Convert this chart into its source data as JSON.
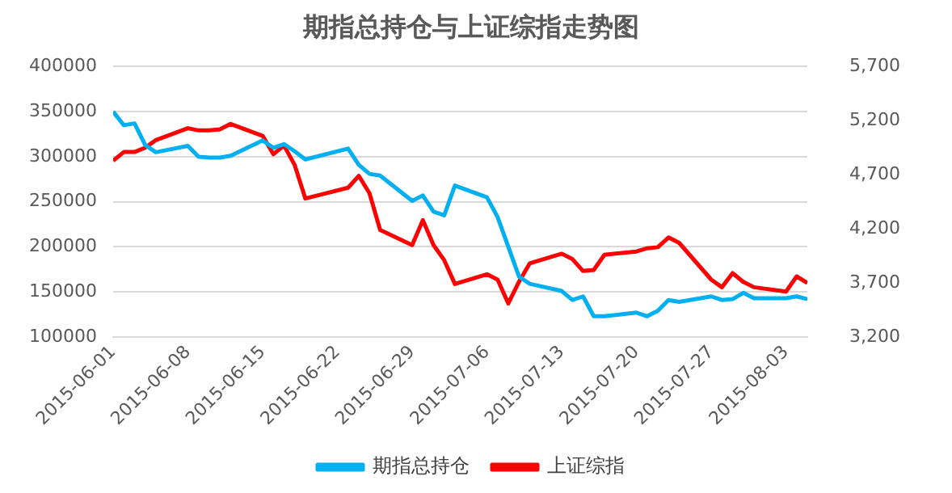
{
  "chart_data": {
    "type": "line",
    "title": "期指总持仓与上证综指走势图",
    "x": [
      "2015-06-01",
      "2015-06-02",
      "2015-06-03",
      "2015-06-04",
      "2015-06-05",
      "2015-06-08",
      "2015-06-09",
      "2015-06-10",
      "2015-06-11",
      "2015-06-12",
      "2015-06-15",
      "2015-06-16",
      "2015-06-17",
      "2015-06-18",
      "2015-06-19",
      "2015-06-23",
      "2015-06-24",
      "2015-06-25",
      "2015-06-26",
      "2015-06-29",
      "2015-06-30",
      "2015-07-01",
      "2015-07-02",
      "2015-07-03",
      "2015-07-06",
      "2015-07-07",
      "2015-07-08",
      "2015-07-09",
      "2015-07-10",
      "2015-07-13",
      "2015-07-14",
      "2015-07-15",
      "2015-07-16",
      "2015-07-17",
      "2015-07-20",
      "2015-07-21",
      "2015-07-22",
      "2015-07-23",
      "2015-07-24",
      "2015-07-27",
      "2015-07-28",
      "2015-07-29",
      "2015-07-30",
      "2015-07-31",
      "2015-08-03",
      "2015-08-04",
      "2015-08-05"
    ],
    "series": [
      {
        "name": "期指总持仓",
        "color": "#00b0f0",
        "values": [
          350000,
          335000,
          337000,
          313000,
          305000,
          312000,
          300000,
          299000,
          299000,
          301000,
          318000,
          310000,
          314000,
          306000,
          297000,
          309000,
          291000,
          281000,
          279000,
          251000,
          257000,
          239000,
          235000,
          268000,
          255000,
          233000,
          200000,
          167000,
          159000,
          151000,
          141000,
          145000,
          123000,
          123000,
          127000,
          123000,
          129000,
          141000,
          139000,
          145000,
          141000,
          142000,
          149000,
          143000,
          143000,
          145000,
          142000
        ]
      },
      {
        "name": "上证综指",
        "color": "#ff0000",
        "axis": "y2",
        "values": [
          4830,
          4910,
          4910,
          4950,
          5020,
          5130,
          5110,
          5110,
          5120,
          5170,
          5060,
          4890,
          4970,
          4790,
          4480,
          4580,
          4690,
          4530,
          4190,
          4050,
          4280,
          4050,
          3910,
          3690,
          3780,
          3730,
          3510,
          3710,
          3880,
          3970,
          3920,
          3810,
          3820,
          3960,
          3990,
          4020,
          4030,
          4120,
          4070,
          3730,
          3660,
          3790,
          3710,
          3660,
          3620,
          3760,
          3700
        ]
      }
    ],
    "xlim": [
      "2015-06-01",
      "2015-08-05"
    ],
    "xticks": [
      "2015-06-01",
      "2015-06-08",
      "2015-06-15",
      "2015-06-22",
      "2015-06-29",
      "2015-07-06",
      "2015-07-13",
      "2015-07-20",
      "2015-07-27",
      "2015-08-03"
    ],
    "ylim": [
      100000,
      400000
    ],
    "yticks": [
      100000,
      150000,
      200000,
      250000,
      300000,
      350000,
      400000
    ],
    "y2lim": [
      3200,
      5700
    ],
    "y2ticks": [
      {
        "value": 3200,
        "label": "3,200"
      },
      {
        "value": 3700,
        "label": "3,700"
      },
      {
        "value": 4200,
        "label": "4,200"
      },
      {
        "value": 4700,
        "label": "4,700"
      },
      {
        "value": 5200,
        "label": "5,200"
      },
      {
        "value": 5700,
        "label": "5,700"
      }
    ],
    "grid": "y",
    "legend": "bottom",
    "marker": "none",
    "line_style": "solid"
  }
}
